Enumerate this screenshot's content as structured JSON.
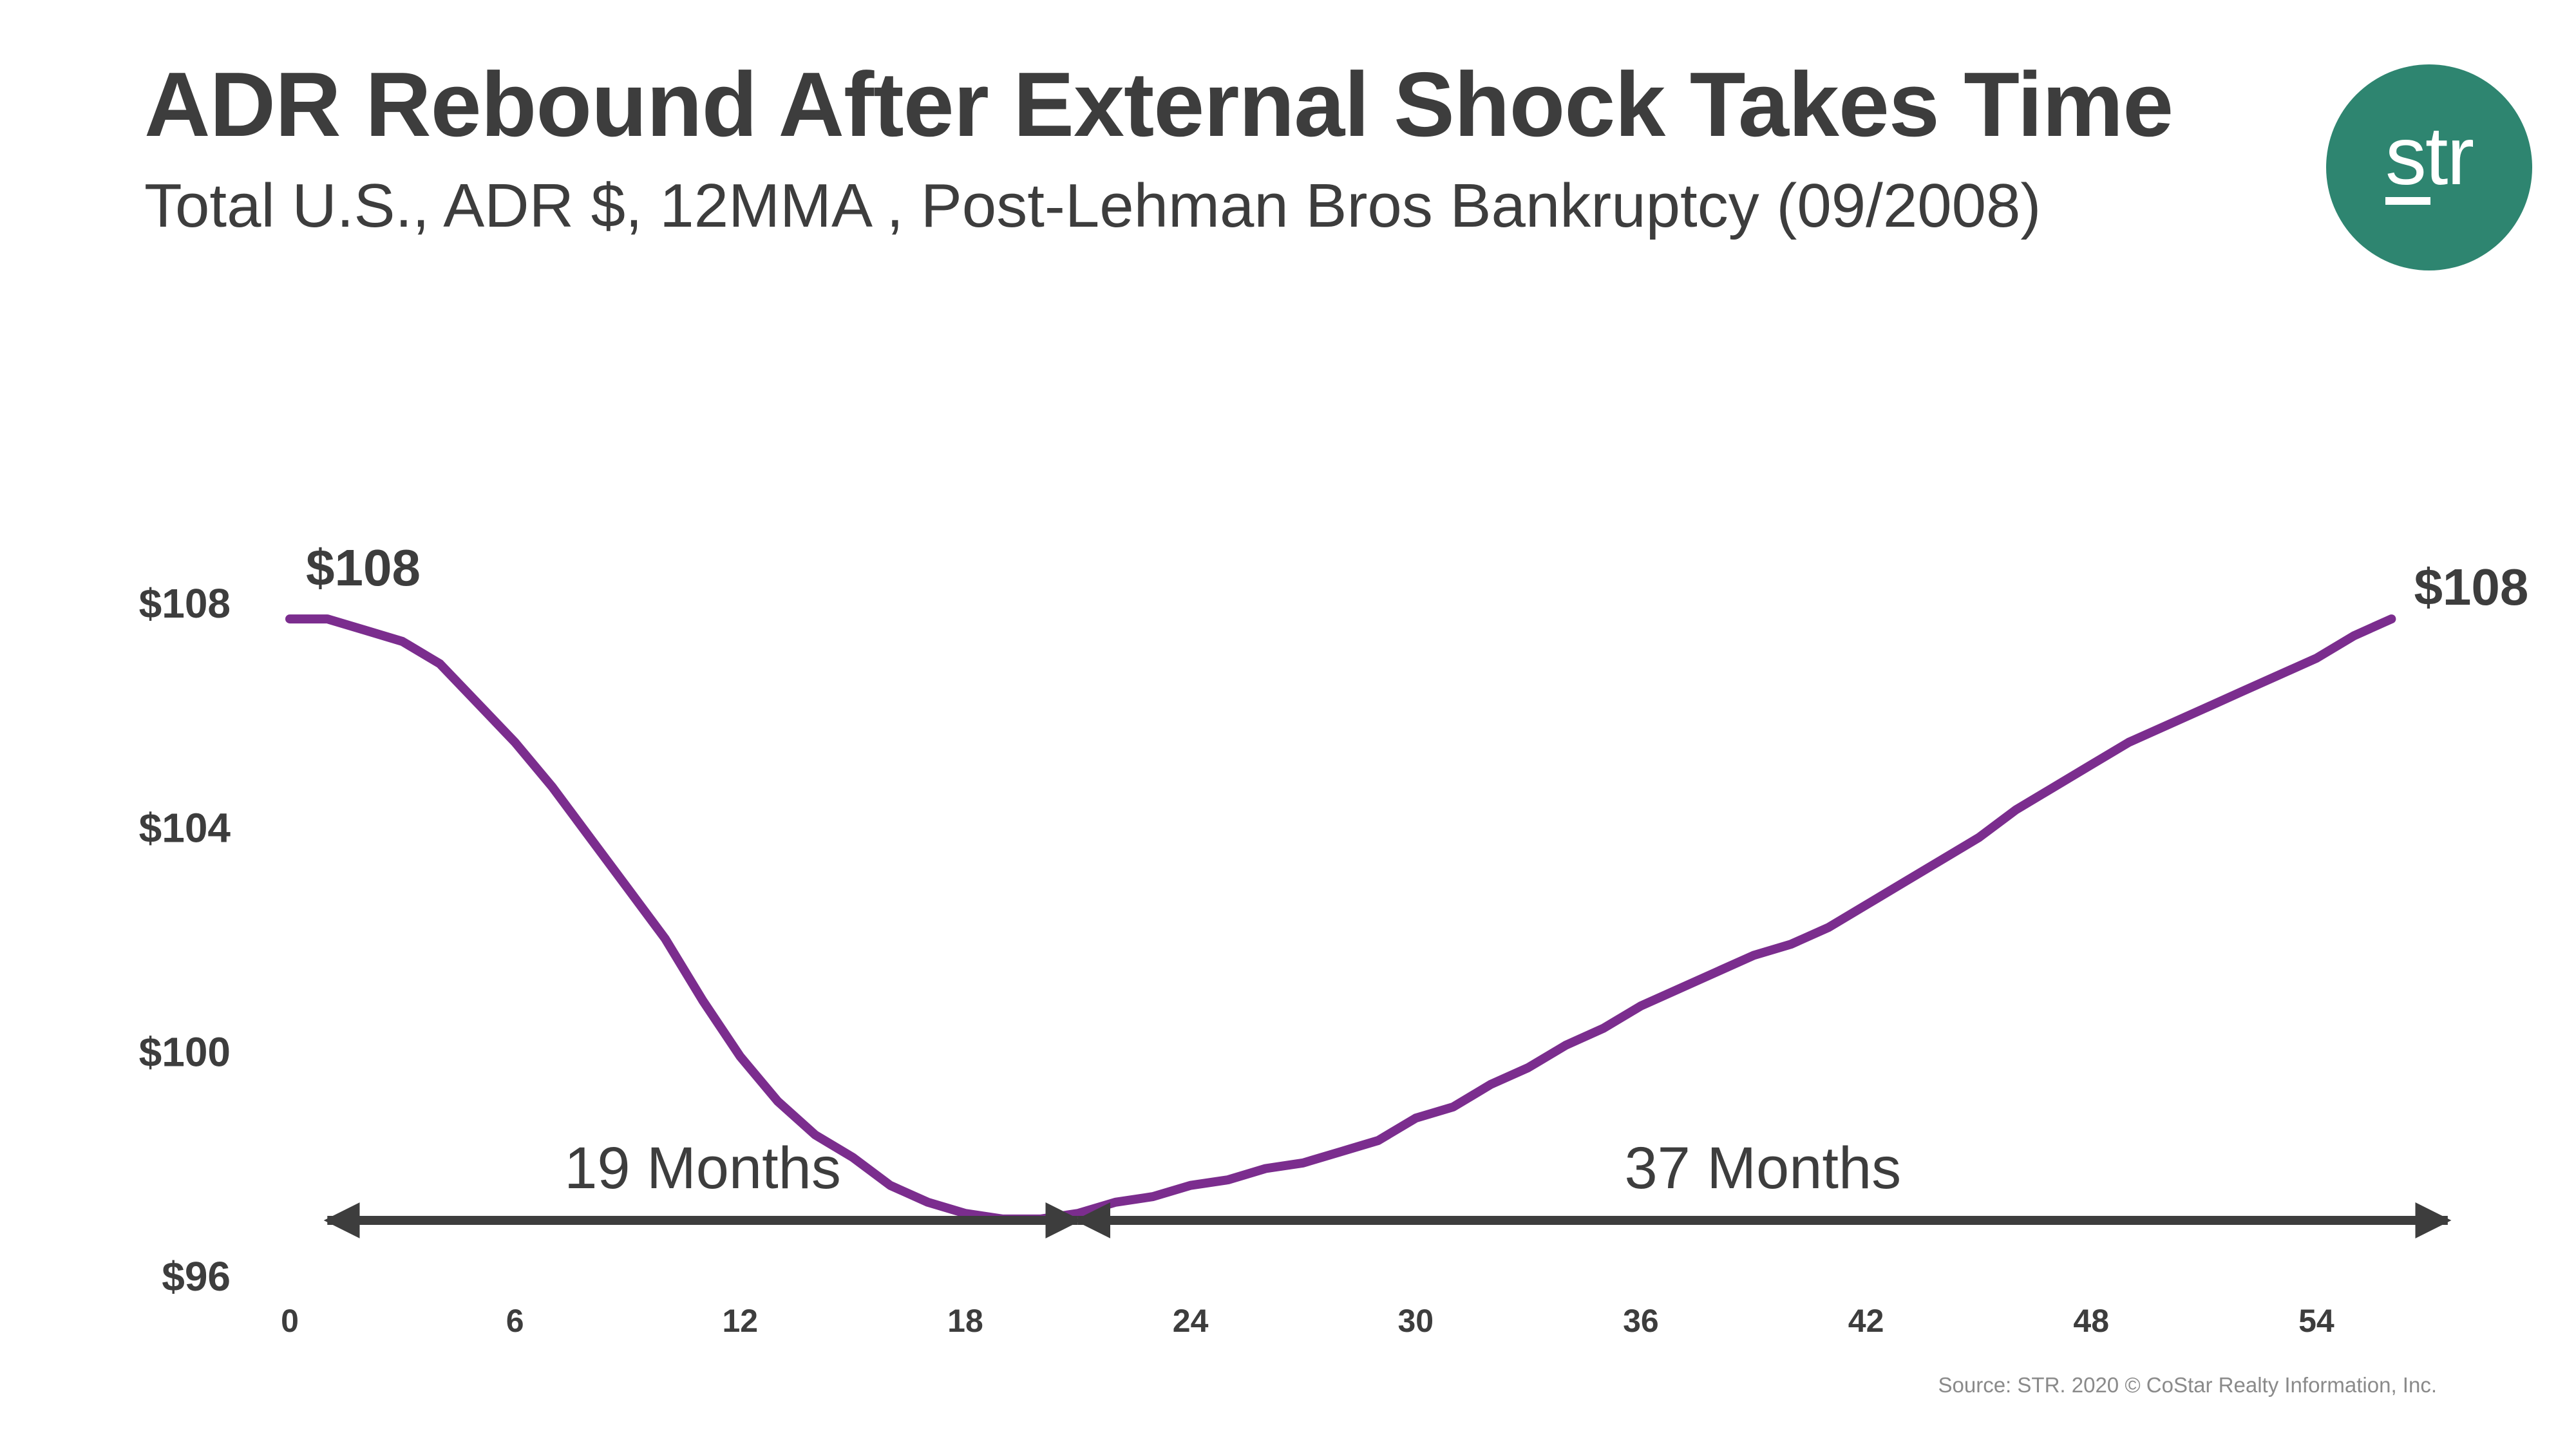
{
  "header": {
    "title": "ADR Rebound After External Shock Takes Time",
    "subtitle": "Total U.S., ADR $, 12MMA , Post-Lehman Bros Bankruptcy (09/2008)"
  },
  "logo": {
    "text": "str",
    "color": "#2e8570"
  },
  "footer": {
    "source": "Source: STR. 2020 © CoStar Realty Information, Inc."
  },
  "chart_data": {
    "type": "line",
    "title": "ADR Rebound After External Shock Takes Time",
    "subtitle": "Total U.S., ADR $, 12MMA , Post-Lehman Bros Bankruptcy (09/2008)",
    "xlabel": "",
    "ylabel": "",
    "xlim": [
      0,
      58
    ],
    "ylim": [
      96,
      108
    ],
    "x_ticks": [
      0,
      6,
      12,
      18,
      24,
      30,
      36,
      42,
      48,
      54
    ],
    "y_ticks": [
      96,
      100,
      104,
      108
    ],
    "y_tick_labels": [
      "$96",
      "$100",
      "$104",
      "$108"
    ],
    "grid": false,
    "legend": "none",
    "series": [
      {
        "color": "#7b2d8e",
        "x": [
          0,
          1,
          2,
          3,
          4,
          5,
          6,
          7,
          8,
          9,
          10,
          11,
          12,
          13,
          14,
          15,
          16,
          17,
          18,
          19,
          20,
          21,
          22,
          23,
          24,
          25,
          26,
          27,
          28,
          29,
          30,
          31,
          32,
          33,
          34,
          35,
          36,
          37,
          38,
          39,
          40,
          41,
          42,
          43,
          44,
          45,
          46,
          47,
          48,
          49,
          50,
          51,
          52,
          53,
          54,
          55,
          56
        ],
        "values": [
          107.7,
          107.7,
          107.5,
          107.3,
          106.9,
          106.2,
          105.5,
          104.7,
          103.8,
          102.9,
          102.0,
          100.9,
          99.9,
          99.1,
          98.5,
          98.1,
          97.6,
          97.3,
          97.1,
          97.0,
          97.0,
          97.1,
          97.3,
          97.4,
          97.6,
          97.7,
          97.9,
          98.0,
          98.2,
          98.4,
          98.8,
          99.0,
          99.4,
          99.7,
          100.1,
          100.4,
          100.8,
          101.1,
          101.4,
          101.7,
          101.9,
          102.2,
          102.6,
          103.0,
          103.4,
          103.8,
          104.3,
          104.7,
          105.1,
          105.5,
          105.8,
          106.1,
          106.4,
          106.7,
          107.0,
          107.4,
          107.7
        ]
      }
    ],
    "annotations": {
      "start_value": "$108",
      "end_value": "$108",
      "span1_label": "19 Months",
      "span1_range": [
        1,
        21
      ],
      "span2_label": "37 Months",
      "span2_range": [
        21,
        57.5
      ]
    }
  }
}
